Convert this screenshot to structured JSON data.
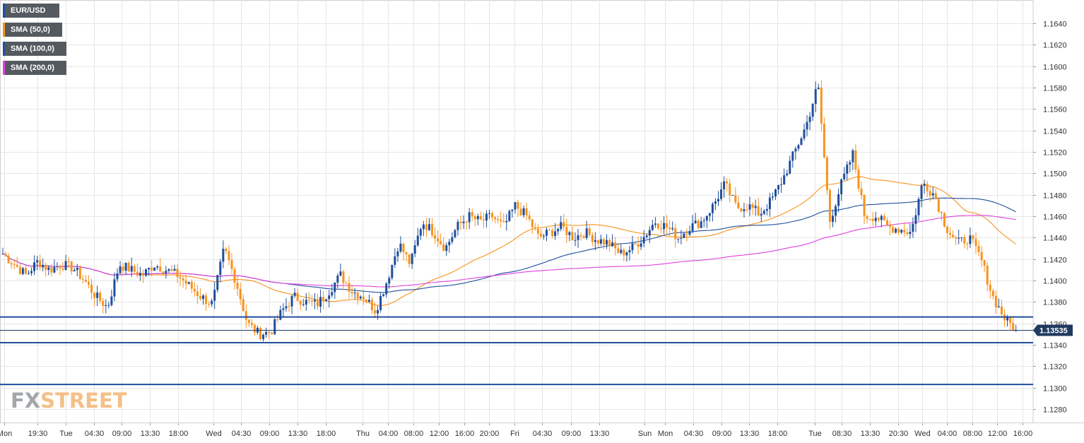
{
  "chart_data": {
    "type": "candlestick",
    "symbol": "EUR/USD",
    "indicators": [
      {
        "name": "SMA (50,0)",
        "color": "#f7931e"
      },
      {
        "name": "SMA (100,0)",
        "color": "#1f4e9c"
      },
      {
        "name": "SMA (200,0)",
        "color": "#e040e0"
      }
    ],
    "colors": {
      "bull": "#1f4e9c",
      "bear": "#f7931e",
      "sma50": "#f7931e",
      "sma100": "#1f4e9c",
      "sma200": "#e040e0",
      "hline": "#1f4e9c",
      "current_price_bg": "#1f3a5f",
      "grid": "#e6e6e6"
    },
    "ylim": [
      1.1268,
      1.1665
    ],
    "y_ticks": [
      "1.1280",
      "1.1300",
      "1.1320",
      "1.1340",
      "1.1360",
      "1.1380",
      "1.1400",
      "1.1420",
      "1.1440",
      "1.1460",
      "1.1480",
      "1.1500",
      "1.1520",
      "1.1540",
      "1.1560",
      "1.1580",
      "1.1600",
      "1.1620",
      "1.1640"
    ],
    "x_ticks": [
      "Mon",
      "19:30",
      "Tue",
      "04:30",
      "09:00",
      "13:30",
      "18:00",
      "Wed",
      "04:30",
      "09:00",
      "13:30",
      "18:00",
      "Thu",
      "04:00",
      "08:00",
      "12:00",
      "16:00",
      "20:00",
      "Fri",
      "04:30",
      "09:00",
      "13:30",
      "Sun",
      "Mon",
      "04:30",
      "09:00",
      "13:30",
      "18:00",
      "Tue",
      "08:30",
      "13:30",
      "20:30",
      "Wed",
      "04:00",
      "08:00",
      "12:00",
      "16:00"
    ],
    "horizontal_levels": [
      1.1366,
      1.1342,
      1.1303
    ],
    "current_price": 1.13535,
    "current_price_label": "1.13535",
    "ohlc_keypoints": [
      1.1425,
      1.1415,
      1.1405,
      1.1418,
      1.141,
      1.1415,
      1.1412,
      1.14,
      1.1385,
      1.1375,
      1.1415,
      1.141,
      1.1405,
      1.1415,
      1.141,
      1.1405,
      1.1395,
      1.1385,
      1.1378,
      1.143,
      1.14,
      1.136,
      1.135,
      1.1352,
      1.1372,
      1.1385,
      1.138,
      1.1378,
      1.139,
      1.1405,
      1.139,
      1.1385,
      1.1372,
      1.14,
      1.1435,
      1.1415,
      1.1455,
      1.1445,
      1.143,
      1.145,
      1.146,
      1.1455,
      1.146,
      1.145,
      1.147,
      1.146,
      1.144,
      1.1445,
      1.145,
      1.144,
      1.1445,
      1.1438,
      1.1435,
      1.1425,
      1.143,
      1.144,
      1.1455,
      1.145,
      1.144,
      1.145,
      1.1455,
      1.147,
      1.149,
      1.1468,
      1.147,
      1.1462,
      1.1475,
      1.1495,
      1.152,
      1.1545,
      1.1583,
      1.1455,
      1.149,
      1.1518,
      1.146,
      1.146,
      1.145,
      1.1448,
      1.1445,
      1.1492,
      1.148,
      1.145,
      1.1435,
      1.144,
      1.142,
      1.1385,
      1.1365,
      1.1354
    ]
  }
}
